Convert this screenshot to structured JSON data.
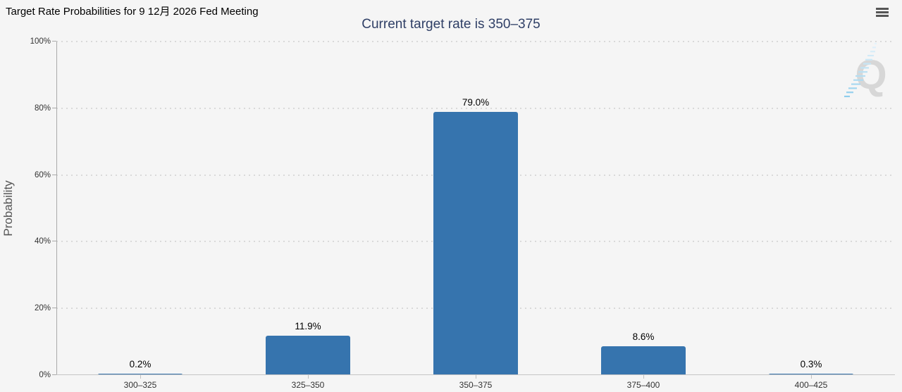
{
  "header": {
    "title": "Target Rate Probabilities for 9 12月 2026 Fed Meeting",
    "subtitle": "Current target rate is 350–375"
  },
  "chart_data": {
    "type": "bar",
    "title": "Target Rate Probabilities for 9 12月 2026 Fed Meeting",
    "subtitle": "Current target rate is 350–375",
    "categories": [
      "300–325",
      "325–350",
      "350–375",
      "375–400",
      "400–425"
    ],
    "values": [
      0.2,
      11.9,
      79.0,
      8.6,
      0.3
    ],
    "value_labels": [
      "0.2%",
      "11.9%",
      "79.0%",
      "8.6%",
      "0.3%"
    ],
    "xlabel": "",
    "ylabel": "Probability",
    "ylim": [
      0,
      100
    ],
    "yticks": [
      "0%",
      "20%",
      "40%",
      "60%",
      "80%",
      "100%"
    ],
    "grid": "dotted horizontal, 20% steps",
    "legend": "none",
    "bar_color": "#3674ae",
    "background_color": "#f5f5f5",
    "subtitle_color": "#2f3f66",
    "watermark": "Q"
  }
}
